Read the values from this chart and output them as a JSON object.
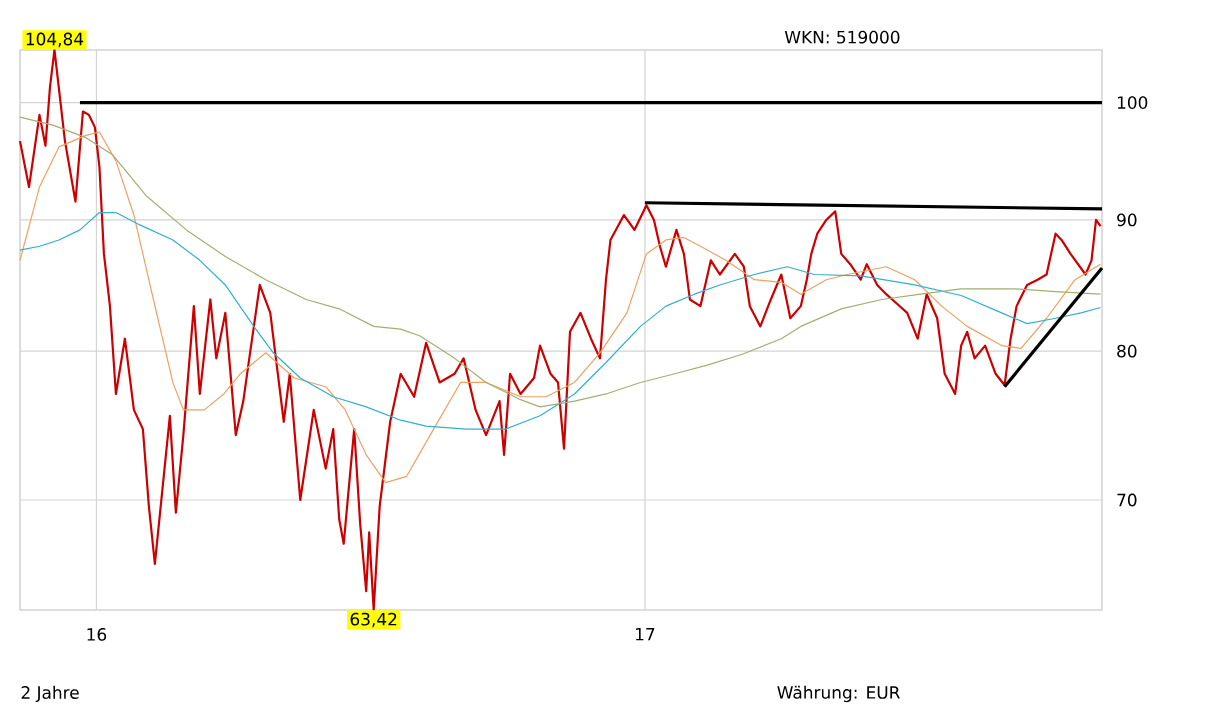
{
  "chart_data": {
    "type": "line",
    "log": "y",
    "grid": true,
    "xlim": [
      "2015-11-11",
      "2017-11-02"
    ],
    "ylim": [
      63.42,
      104.84
    ],
    "xticks": [
      {
        "value": "2016-01-01",
        "label": "16"
      },
      {
        "value": "2017-01-01",
        "label": "17"
      }
    ],
    "yticks": [
      70,
      80,
      90,
      100
    ],
    "annotations": [
      "WKN: 519000",
      "2 Jahre",
      "Währung: EUR",
      {
        "text": "104,84",
        "x": "2015-12-04",
        "y": 104.84
      },
      {
        "text": "63,42",
        "x": "2016-07-04",
        "y": 63.42
      }
    ],
    "series": [
      {
        "color": "#cc0000",
        "x": [
          "2015-11-11",
          "2015-11-17",
          "2015-11-24",
          "2015-11-28",
          "2015-12-01",
          "2015-12-04",
          "2015-12-11",
          "2015-12-18",
          "2015-12-23",
          "2015-12-27",
          "2015-12-31",
          "2016-01-03",
          "2016-01-06",
          "2016-01-07",
          "2016-01-10",
          "2016-01-14",
          "2016-01-20",
          "2016-01-26",
          "2016-02-01",
          "2016-02-05",
          "2016-02-09",
          "2016-02-19",
          "2016-02-23",
          "2016-02-28",
          "2016-03-06",
          "2016-03-10",
          "2016-03-17",
          "2016-03-21",
          "2016-03-27",
          "2016-04-03",
          "2016-04-08",
          "2016-04-12",
          "2016-04-19",
          "2016-04-26",
          "2016-05-05",
          "2016-05-09",
          "2016-05-16",
          "2016-05-25",
          "2016-06-02",
          "2016-06-07",
          "2016-06-11",
          "2016-06-14",
          "2016-06-21",
          "2016-06-25",
          "2016-06-29",
          "2016-07-01",
          "2016-07-04",
          "2016-07-08",
          "2016-07-15",
          "2016-07-22",
          "2016-07-31",
          "2016-08-08",
          "2016-08-17",
          "2016-08-27",
          "2016-09-02",
          "2016-09-10",
          "2016-09-17",
          "2016-09-26",
          "2016-09-29",
          "2016-10-03",
          "2016-10-10",
          "2016-10-19",
          "2016-10-23",
          "2016-10-30",
          "2016-11-04",
          "2016-11-08",
          "2016-11-12",
          "2016-11-19",
          "2016-11-26",
          "2016-12-02",
          "2016-12-06",
          "2016-12-09",
          "2016-12-18",
          "2016-12-25",
          "2017-01-02",
          "2017-01-07",
          "2017-01-11",
          "2017-01-15",
          "2017-01-22",
          "2017-01-27",
          "2017-01-31",
          "2017-02-07",
          "2017-02-14",
          "2017-02-20",
          "2017-03-02",
          "2017-03-08",
          "2017-03-12",
          "2017-03-19",
          "2017-03-26",
          "2017-04-02",
          "2017-04-08",
          "2017-04-15",
          "2017-04-19",
          "2017-04-22",
          "2017-04-26",
          "2017-05-02",
          "2017-05-08",
          "2017-05-12",
          "2017-05-18",
          "2017-05-25",
          "2017-05-29",
          "2017-06-05",
          "2017-06-11",
          "2017-06-18",
          "2017-06-25",
          "2017-07-02",
          "2017-07-08",
          "2017-07-15",
          "2017-07-20",
          "2017-07-27",
          "2017-07-31",
          "2017-08-04",
          "2017-08-09",
          "2017-08-16",
          "2017-08-23",
          "2017-08-29",
          "2017-09-02",
          "2017-09-06",
          "2017-09-13",
          "2017-09-20",
          "2017-09-26",
          "2017-10-02",
          "2017-10-06",
          "2017-10-12",
          "2017-10-22",
          "2017-10-26",
          "2017-10-29",
          "2017-11-01"
        ],
        "values": [
          96.6,
          92.7,
          98.9,
          96.2,
          101.4,
          104.84,
          96.6,
          91.5,
          99.2,
          98.9,
          97.8,
          94.4,
          87.3,
          86.3,
          83.3,
          77.0,
          80.9,
          75.9,
          74.6,
          69.6,
          66.1,
          75.5,
          69.2,
          74.2,
          83.3,
          77.0,
          83.8,
          79.5,
          82.8,
          74.2,
          76.5,
          79.5,
          84.9,
          82.8,
          75.1,
          78.4,
          70.0,
          75.9,
          72.0,
          74.6,
          68.8,
          67.3,
          74.6,
          68.5,
          64.5,
          68.0,
          63.42,
          69.6,
          75.1,
          78.4,
          76.8,
          80.6,
          77.8,
          78.4,
          79.5,
          75.9,
          74.2,
          76.5,
          72.9,
          78.4,
          77.0,
          78.1,
          80.4,
          78.4,
          77.8,
          73.3,
          81.4,
          82.8,
          80.9,
          79.5,
          85.3,
          88.4,
          90.4,
          89.2,
          91.2,
          90.0,
          87.9,
          86.3,
          89.2,
          87.3,
          83.8,
          83.3,
          86.8,
          85.7,
          87.3,
          86.3,
          83.3,
          81.8,
          83.8,
          85.7,
          82.4,
          83.3,
          85.3,
          87.3,
          88.9,
          90.0,
          90.7,
          87.3,
          86.5,
          85.3,
          86.5,
          84.9,
          84.2,
          83.5,
          82.8,
          80.9,
          84.2,
          82.4,
          78.4,
          77.0,
          80.4,
          81.4,
          79.5,
          80.4,
          78.4,
          77.6,
          80.9,
          83.3,
          84.9,
          85.3,
          85.7,
          88.9,
          88.4,
          87.3,
          85.7,
          86.8,
          90.0,
          89.5
        ]
      },
      {
        "color": "#f0a060",
        "x": [
          "2015-11-11",
          "2015-11-24",
          "2015-12-07",
          "2015-12-25",
          "2016-01-03",
          "2016-01-14",
          "2016-01-26",
          "2016-02-08",
          "2016-02-21",
          "2016-02-28",
          "2016-03-13",
          "2016-03-26",
          "2016-04-06",
          "2016-04-23",
          "2016-05-12",
          "2016-06-02",
          "2016-06-15",
          "2016-06-29",
          "2016-07-12",
          "2016-07-26",
          "2016-08-13",
          "2016-08-31",
          "2016-09-17",
          "2016-10-10",
          "2016-10-27",
          "2016-11-15",
          "2016-12-02",
          "2016-12-20",
          "2017-01-02",
          "2017-01-15",
          "2017-01-27",
          "2017-02-07",
          "2017-02-24",
          "2017-03-15",
          "2017-04-02",
          "2017-04-15",
          "2017-05-02",
          "2017-05-16",
          "2017-06-11",
          "2017-06-30",
          "2017-07-18",
          "2017-08-04",
          "2017-08-27",
          "2017-09-09",
          "2017-09-26",
          "2017-10-15",
          "2017-11-01"
        ],
        "values": [
          86.8,
          92.7,
          96.1,
          97.1,
          97.4,
          94.9,
          90.4,
          83.8,
          77.8,
          75.9,
          75.9,
          77.0,
          78.4,
          79.9,
          78.1,
          77.5,
          75.9,
          72.9,
          71.1,
          71.5,
          74.6,
          77.8,
          77.8,
          76.8,
          76.8,
          77.8,
          79.9,
          82.8,
          87.3,
          88.4,
          88.6,
          87.9,
          86.8,
          85.3,
          85.1,
          84.2,
          85.3,
          85.7,
          86.3,
          85.3,
          83.3,
          81.8,
          80.4,
          80.2,
          82.4,
          85.3,
          86.5
        ]
      },
      {
        "color": "#30b0d0",
        "x": [
          "2015-11-11",
          "2015-11-24",
          "2015-12-07",
          "2015-12-21",
          "2016-01-03",
          "2016-01-14",
          "2016-01-30",
          "2016-02-21",
          "2016-03-10",
          "2016-03-27",
          "2016-04-15",
          "2016-04-28",
          "2016-05-16",
          "2016-06-07",
          "2016-06-29",
          "2016-07-22",
          "2016-08-08",
          "2016-09-04",
          "2016-09-30",
          "2016-10-23",
          "2016-11-15",
          "2016-12-06",
          "2016-12-29",
          "2017-01-15",
          "2017-02-03",
          "2017-02-20",
          "2017-03-15",
          "2017-04-06",
          "2017-04-24",
          "2017-05-25",
          "2017-06-30",
          "2017-07-31",
          "2017-08-27",
          "2017-09-13",
          "2017-10-02",
          "2017-10-19",
          "2017-11-01"
        ],
        "values": [
          87.6,
          87.9,
          88.4,
          89.2,
          90.6,
          90.6,
          89.6,
          88.4,
          86.8,
          84.9,
          81.8,
          79.9,
          78.1,
          76.8,
          76.1,
          75.2,
          74.8,
          74.6,
          74.6,
          75.5,
          77.0,
          79.2,
          81.8,
          83.3,
          84.2,
          84.9,
          85.7,
          86.3,
          85.7,
          85.6,
          84.9,
          84.1,
          82.8,
          82.0,
          82.4,
          82.8,
          83.2
        ]
      },
      {
        "color": "#a0b070",
        "x": [
          "2015-11-11",
          "2015-12-03",
          "2015-12-25",
          "2016-01-12",
          "2016-02-03",
          "2016-03-01",
          "2016-03-27",
          "2016-04-23",
          "2016-05-20",
          "2016-06-11",
          "2016-07-04",
          "2016-07-22",
          "2016-08-04",
          "2016-08-27",
          "2016-09-17",
          "2016-10-10",
          "2016-10-23",
          "2016-11-15",
          "2016-12-06",
          "2016-12-29",
          "2017-01-21",
          "2017-02-11",
          "2017-03-07",
          "2017-04-02",
          "2017-04-15",
          "2017-05-12",
          "2017-06-08",
          "2017-07-04",
          "2017-07-31",
          "2017-09-05",
          "2017-10-02",
          "2017-11-01"
        ],
        "values": [
          98.7,
          98.0,
          96.9,
          95.4,
          92.0,
          89.2,
          87.1,
          85.3,
          83.8,
          83.1,
          81.8,
          81.6,
          81.1,
          79.5,
          77.8,
          76.6,
          76.1,
          76.5,
          77.0,
          77.8,
          78.4,
          79.0,
          79.8,
          80.9,
          81.8,
          83.1,
          83.8,
          84.2,
          84.6,
          84.6,
          84.4,
          84.2
        ]
      },
      {
        "color": "#000000",
        "x": [
          "2015-12-21",
          "2017-11-02"
        ],
        "values": [
          100,
          100
        ]
      },
      {
        "color": "#000000",
        "x": [
          "2017-01-01",
          "2017-11-02"
        ],
        "values": [
          91.4,
          90.9
        ]
      },
      {
        "color": "#000000",
        "x": [
          "2017-08-29",
          "2017-11-02"
        ],
        "values": [
          77.5,
          86.2
        ]
      }
    ]
  }
}
